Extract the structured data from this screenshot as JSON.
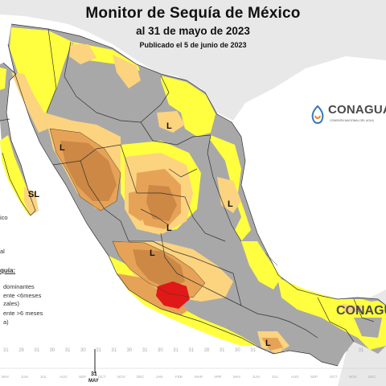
{
  "header": {
    "title": "Monitor de Sequía de México",
    "date": "al 31 de mayo de 2023",
    "published": "Publicado el 5 de junio de 2023"
  },
  "logos": {
    "conagua": "CONAGUA",
    "conagua_sub": "COMISIÓN NACIONAL DEL AGUA",
    "conagua_partial": "CONAGUA"
  },
  "map_labels": [
    "L",
    "L",
    "L",
    "SL",
    "L",
    "L",
    "L"
  ],
  "legend_fragments": {
    "line1": "ico",
    "line2": "al",
    "head": "quía:",
    "dom1": "dominantes",
    "dom2": "ente <6meses",
    "dom3": "zales)",
    "dom4": "ente >6 meses",
    "dom5": "a)"
  },
  "timeline": {
    "numbers": [
      "31",
      "28",
      "31",
      "30",
      "31",
      "30",
      "31",
      "31",
      "30",
      "31",
      "30",
      "31",
      "31",
      "28",
      "31",
      "30",
      "31",
      "30",
      "31",
      "31",
      "30",
      "31",
      "30",
      "31"
    ],
    "months": [
      "MAY",
      "JUN",
      "JUL",
      "AUG",
      "SEP",
      "OCT",
      "NOV",
      "DEC",
      "JAN",
      "FEB",
      "MAR",
      "APR",
      "MAY",
      "JUN",
      "JUL",
      "AUG",
      "SEP",
      "OCT",
      "NOV",
      "DEC"
    ],
    "current_number": "31",
    "current_month": "MAY"
  },
  "colors": {
    "water": "#ffffff",
    "neighbor": "#e8e8e8",
    "no_drought": "#a8a8a8",
    "D0": "#ffff3f",
    "D1": "#fcd37f",
    "D2": "#e6a358",
    "D3": "#cc8844",
    "D4": "#e01818",
    "border": "#333333"
  }
}
